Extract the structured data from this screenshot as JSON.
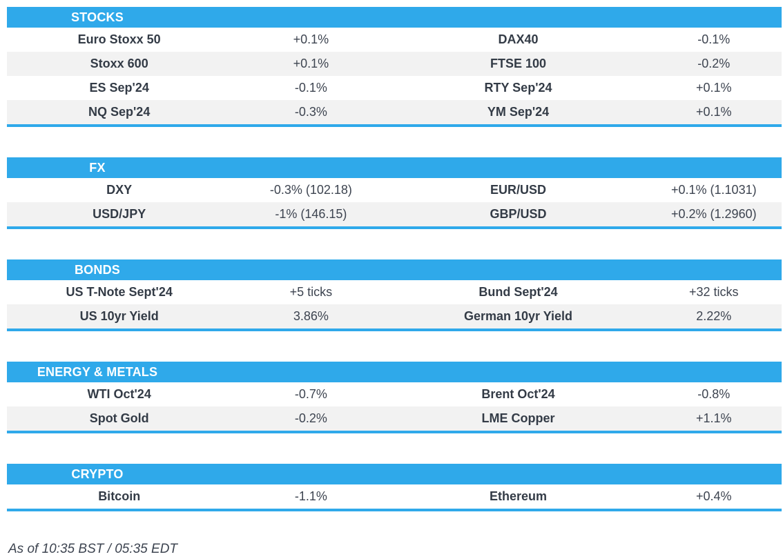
{
  "colors": {
    "accent": "#2FA9EA",
    "row_alternate": "#F2F2F2",
    "label_text": "#333B46",
    "value_text": "#3D4450",
    "header_text": "#FFFFFF"
  },
  "sections": [
    {
      "id": "stocks",
      "title": "STOCKS",
      "rows": [
        [
          "Euro Stoxx 50",
          "+0.1%",
          "DAX40",
          "-0.1%"
        ],
        [
          "Stoxx 600",
          "+0.1%",
          "FTSE 100",
          "-0.2%"
        ],
        [
          "ES Sep'24",
          "-0.1%",
          "RTY Sep'24",
          "+0.1%"
        ],
        [
          "NQ Sep'24",
          "-0.3%",
          "YM Sep'24",
          "+0.1%"
        ]
      ]
    },
    {
      "id": "fx",
      "title": "FX",
      "rows": [
        [
          "DXY",
          "-0.3% (102.18)",
          "EUR/USD",
          "+0.1% (1.1031)"
        ],
        [
          "USD/JPY",
          "-1% (146.15)",
          "GBP/USD",
          "+0.2% (1.2960)"
        ]
      ]
    },
    {
      "id": "bonds",
      "title": "BONDS",
      "rows": [
        [
          "US T-Note Sept'24",
          "+5 ticks",
          "Bund Sept'24",
          "+32 ticks"
        ],
        [
          "US 10yr Yield",
          "3.86%",
          "German 10yr Yield",
          "2.22%"
        ]
      ]
    },
    {
      "id": "energy-metals",
      "title": "ENERGY & METALS",
      "rows": [
        [
          "WTI Oct'24",
          "-0.7%",
          "Brent Oct'24",
          "-0.8%"
        ],
        [
          "Spot Gold",
          "-0.2%",
          "LME Copper",
          "+1.1%"
        ]
      ]
    },
    {
      "id": "crypto",
      "title": "CRYPTO",
      "rows": [
        [
          "Bitcoin",
          "-1.1%",
          "Ethereum",
          "+0.4%"
        ]
      ]
    }
  ],
  "footer": {
    "timestamp": "As of 10:35 BST / 05:35 EDT"
  }
}
